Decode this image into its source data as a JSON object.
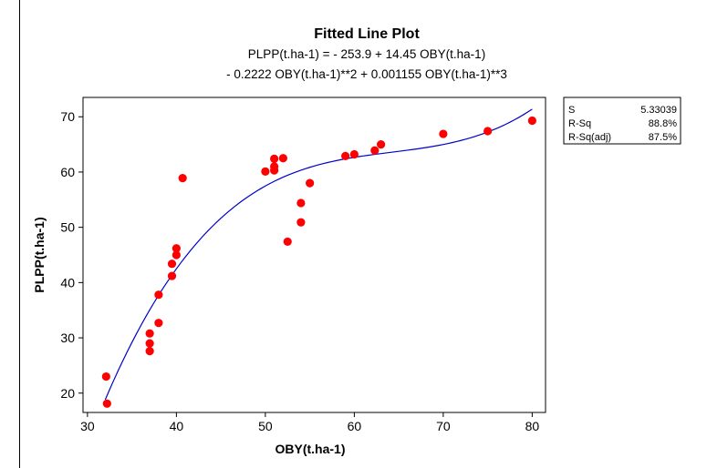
{
  "chart_data": {
    "type": "scatter",
    "title": "Fitted Line Plot",
    "subtitle": [
      "PLPP(t.ha-1) =  - 253.9 + 14.45 OBY(t.ha-1)",
      "- 0.2222 OBY(t.ha-1)**2 + 0.001155 OBY(t.ha-1)**3"
    ],
    "xlabel": "OBY(t.ha-1)",
    "ylabel": "PLPP(t.ha-1)",
    "xlim": [
      29.5,
      81.5
    ],
    "ylim": [
      16.5,
      73.5
    ],
    "xticks": [
      30,
      40,
      50,
      60,
      70,
      80
    ],
    "yticks": [
      20,
      30,
      40,
      50,
      60,
      70
    ],
    "grid": false,
    "point_color": "#ff0000",
    "line_color": "#0000cc",
    "points": [
      {
        "x": 32.1,
        "y": 23.0
      },
      {
        "x": 32.2,
        "y": 18.1
      },
      {
        "x": 37.0,
        "y": 30.8
      },
      {
        "x": 37.0,
        "y": 29.0
      },
      {
        "x": 37.0,
        "y": 27.6
      },
      {
        "x": 38.0,
        "y": 37.8
      },
      {
        "x": 38.0,
        "y": 32.7
      },
      {
        "x": 39.5,
        "y": 43.4
      },
      {
        "x": 39.5,
        "y": 41.2
      },
      {
        "x": 40.0,
        "y": 46.2
      },
      {
        "x": 40.0,
        "y": 45.0
      },
      {
        "x": 40.7,
        "y": 58.9
      },
      {
        "x": 50.0,
        "y": 60.1
      },
      {
        "x": 51.0,
        "y": 62.4
      },
      {
        "x": 51.0,
        "y": 61.0
      },
      {
        "x": 51.0,
        "y": 60.3
      },
      {
        "x": 52.0,
        "y": 62.5
      },
      {
        "x": 54.0,
        "y": 54.4
      },
      {
        "x": 54.0,
        "y": 50.9
      },
      {
        "x": 52.5,
        "y": 47.4
      },
      {
        "x": 55.0,
        "y": 58.0
      },
      {
        "x": 59.0,
        "y": 62.9
      },
      {
        "x": 60.0,
        "y": 63.2
      },
      {
        "x": 62.3,
        "y": 63.9
      },
      {
        "x": 63.0,
        "y": 65.0
      },
      {
        "x": 70.0,
        "y": 66.9
      },
      {
        "x": 75.0,
        "y": 67.4
      },
      {
        "x": 80.0,
        "y": 69.3
      }
    ],
    "fit": {
      "intercept": -253.9,
      "b1": 14.45,
      "b2": -0.2222,
      "b3": 0.001155,
      "x_range": [
        32,
        80
      ]
    },
    "stats": [
      {
        "label": "S",
        "value": "5.33039"
      },
      {
        "label": "R-Sq",
        "value": "88.8%"
      },
      {
        "label": "R-Sq(adj)",
        "value": "87.5%"
      }
    ]
  }
}
